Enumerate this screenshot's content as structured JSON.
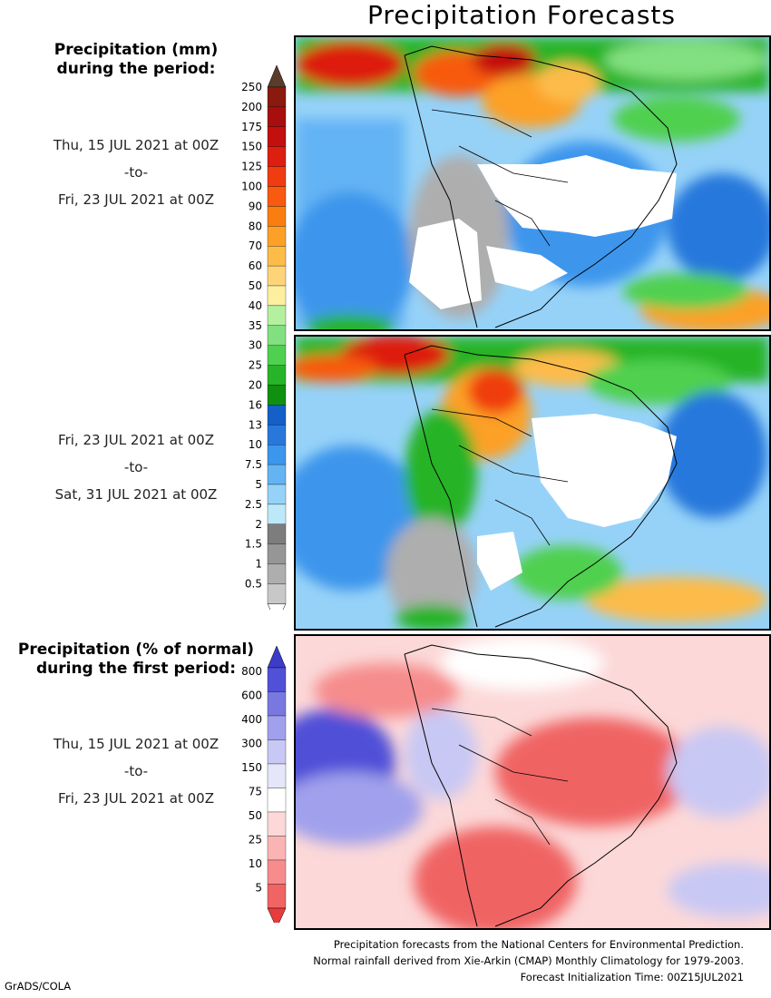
{
  "title": "Precipitation Forecasts",
  "precip_header": [
    "Precipitation (mm)",
    "during the period:"
  ],
  "period1": {
    "start": "Thu, 15 JUL 2021 at 00Z",
    "to": "-to-",
    "end": "Fri, 23 JUL 2021 at 00Z"
  },
  "period2": {
    "start": "Fri, 23 JUL 2021 at 00Z",
    "to": "-to-",
    "end": "Sat, 31 JUL 2021 at 00Z"
  },
  "pct_header": [
    "Precipitation (% of normal)",
    "during the first period:"
  ],
  "period3": {
    "start": "Thu, 15 JUL 2021 at 00Z",
    "to": "-to-",
    "end": "Fri, 23 JUL 2021 at 00Z"
  },
  "precip_scale": {
    "labels": [
      "250",
      "200",
      "175",
      "150",
      "125",
      "100",
      "90",
      "80",
      "70",
      "60",
      "50",
      "40",
      "35",
      "30",
      "25",
      "20",
      "16",
      "13",
      "10",
      "7.5",
      "5",
      "2.5",
      "2",
      "1.5",
      "1",
      "0.5"
    ],
    "colors": [
      "#8b1a0e",
      "#a80e0e",
      "#c40f0f",
      "#dd1f0f",
      "#f03c10",
      "#f85a10",
      "#fa7d10",
      "#fca028",
      "#fdbb48",
      "#fdd578",
      "#fcefa0",
      "#b4f0a0",
      "#82e080",
      "#50d050",
      "#28b428",
      "#109010",
      "#1460c8",
      "#2878dc",
      "#3c96ec",
      "#64b4f4",
      "#96d2f8",
      "#bce8f8",
      "#7d7d7d",
      "#969696",
      "#aeaeae",
      "#c8c8c8"
    ],
    "top_color": "#5a3c2a"
  },
  "pct_scale": {
    "labels": [
      "800",
      "600",
      "400",
      "300",
      "150",
      "75",
      "50",
      "25",
      "10",
      "5"
    ],
    "colors": [
      "#5050d8",
      "#7878e0",
      "#a0a0ec",
      "#c8c8f4",
      "#e6e6fa",
      "#ffffff",
      "#fcd8d8",
      "#fab4b4",
      "#f68c8c",
      "#f06464"
    ],
    "top_color": "#3c3cc8",
    "bottom_color": "#e83c3c"
  },
  "footer": [
    "Precipitation forecasts from the National Centers for Environmental Prediction.",
    "Normal rainfall derived from Xie-Arkin (CMAP) Monthly Climatology for 1979-2003.",
    "Forecast Initialization Time: 00Z15JUL2021"
  ],
  "credit": "GrADS/COLA"
}
